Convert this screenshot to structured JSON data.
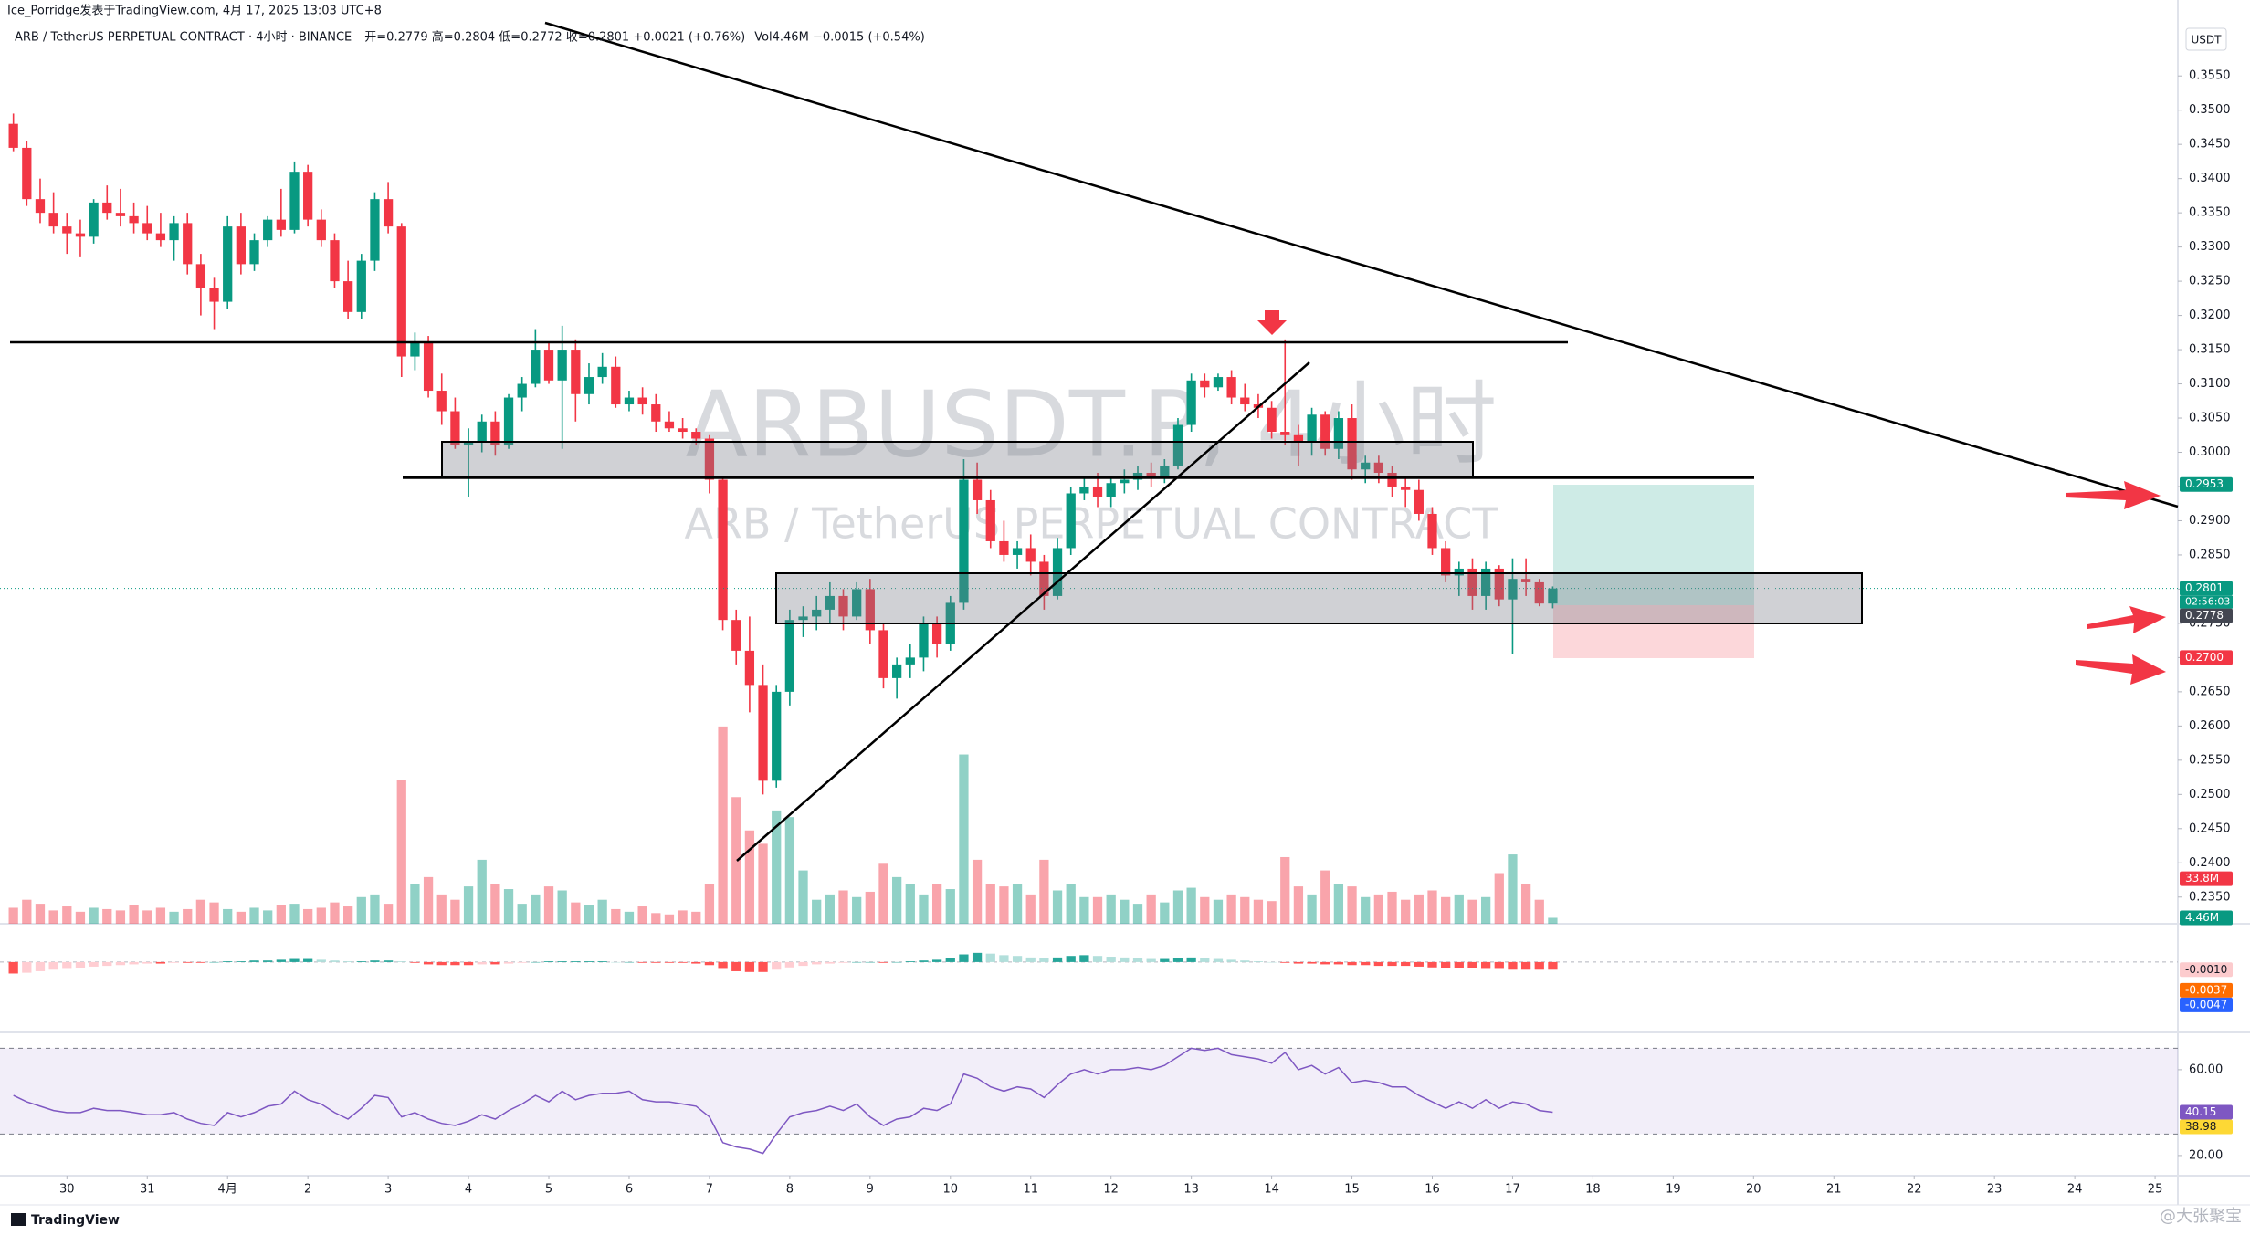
{
  "header": {
    "published": "Ice_Porridge发表于TradingView.com, 4月 17, 2025 13:03 UTC+8",
    "symbol": "ARB / TetherUS PERPETUAL CONTRACT · 4小时 · BINANCE",
    "ohlc": "开=0.2779 高=0.2804 低=0.2772 收=0.2801 +0.0021 (+0.76%)",
    "volume": "Vol4.46M −0.0015 (+0.54%)"
  },
  "watermark": {
    "symbol": "ARBUSDT.P, 4小时",
    "name": "ARB / TetherUS PERPETUAL CONTRACT"
  },
  "currency": "USDT",
  "footer": "TradingView",
  "signature": "@大张聚宝",
  "chart_data": {
    "type": "candlestick",
    "up_color": "#089981",
    "down_color": "#f23645",
    "xlim": [
      -1,
      161.7
    ],
    "ylim": [
      0.2311,
      0.3661
    ],
    "xticks": [
      {
        "value": 4,
        "label": "30"
      },
      {
        "value": 10,
        "label": "31"
      },
      {
        "value": 16,
        "label": "4月"
      },
      {
        "value": 22,
        "label": "2"
      },
      {
        "value": 28,
        "label": "3"
      },
      {
        "value": 34,
        "label": "4"
      },
      {
        "value": 40,
        "label": "5"
      },
      {
        "value": 46,
        "label": "6"
      },
      {
        "value": 52,
        "label": "7"
      },
      {
        "value": 58,
        "label": "8"
      },
      {
        "value": 64,
        "label": "9"
      },
      {
        "value": 70,
        "label": "10"
      },
      {
        "value": 76,
        "label": "11"
      },
      {
        "value": 82,
        "label": "12"
      },
      {
        "value": 88,
        "label": "13"
      },
      {
        "value": 94,
        "label": "14"
      },
      {
        "value": 100,
        "label": "15"
      },
      {
        "value": 106,
        "label": "16"
      },
      {
        "value": 112,
        "label": "17"
      },
      {
        "value": 118,
        "label": "18"
      },
      {
        "value": 124,
        "label": "19"
      },
      {
        "value": 130,
        "label": "20"
      },
      {
        "value": 136,
        "label": "21"
      },
      {
        "value": 142,
        "label": "22"
      },
      {
        "value": 148,
        "label": "23"
      },
      {
        "value": 154,
        "label": "24"
      },
      {
        "value": 160,
        "label": "25"
      }
    ],
    "yticks": [
      {
        "value": 0.235,
        "label": "0.2350"
      },
      {
        "value": 0.24,
        "label": "0.2400"
      },
      {
        "value": 0.245,
        "label": "0.2450"
      },
      {
        "value": 0.25,
        "label": "0.2500"
      },
      {
        "value": 0.255,
        "label": "0.2550"
      },
      {
        "value": 0.26,
        "label": "0.2600"
      },
      {
        "value": 0.265,
        "label": "0.2650"
      },
      {
        "value": 0.27,
        "label": "0.2700"
      },
      {
        "value": 0.275,
        "label": "0.2750"
      },
      {
        "value": 0.28,
        "label": "0.2800"
      },
      {
        "value": 0.285,
        "label": "0.2850"
      },
      {
        "value": 0.29,
        "label": "0.2900"
      },
      {
        "value": 0.295,
        "label": "0.2950"
      },
      {
        "value": 0.3,
        "label": "0.3000"
      },
      {
        "value": 0.305,
        "label": "0.3050"
      },
      {
        "value": 0.31,
        "label": "0.3100"
      },
      {
        "value": 0.315,
        "label": "0.3150"
      },
      {
        "value": 0.32,
        "label": "0.3200"
      },
      {
        "value": 0.325,
        "label": "0.3250"
      },
      {
        "value": 0.33,
        "label": "0.3300"
      },
      {
        "value": 0.335,
        "label": "0.3350"
      },
      {
        "value": 0.34,
        "label": "0.3400"
      },
      {
        "value": 0.345,
        "label": "0.3450"
      },
      {
        "value": 0.35,
        "label": "0.3500"
      },
      {
        "value": 0.355,
        "label": "0.3550"
      }
    ],
    "ohlc": [
      [
        0.348,
        0.3495,
        0.344,
        0.3445
      ],
      [
        0.3445,
        0.3455,
        0.336,
        0.337
      ],
      [
        0.337,
        0.34,
        0.3335,
        0.335
      ],
      [
        0.335,
        0.338,
        0.332,
        0.333
      ],
      [
        0.333,
        0.335,
        0.329,
        0.332
      ],
      [
        0.332,
        0.334,
        0.3285,
        0.3315
      ],
      [
        0.3315,
        0.337,
        0.3305,
        0.3365
      ],
      [
        0.3365,
        0.339,
        0.334,
        0.335
      ],
      [
        0.335,
        0.3385,
        0.333,
        0.3345
      ],
      [
        0.3345,
        0.3365,
        0.332,
        0.3335
      ],
      [
        0.3335,
        0.336,
        0.331,
        0.332
      ],
      [
        0.332,
        0.335,
        0.33,
        0.331
      ],
      [
        0.331,
        0.3345,
        0.328,
        0.3335
      ],
      [
        0.3335,
        0.335,
        0.326,
        0.3275
      ],
      [
        0.3275,
        0.329,
        0.32,
        0.324
      ],
      [
        0.324,
        0.3255,
        0.318,
        0.322
      ],
      [
        0.322,
        0.3345,
        0.321,
        0.333
      ],
      [
        0.333,
        0.335,
        0.326,
        0.3275
      ],
      [
        0.3275,
        0.332,
        0.3265,
        0.331
      ],
      [
        0.331,
        0.3345,
        0.33,
        0.334
      ],
      [
        0.334,
        0.3385,
        0.3315,
        0.3325
      ],
      [
        0.3325,
        0.3425,
        0.332,
        0.341
      ],
      [
        0.341,
        0.342,
        0.333,
        0.334
      ],
      [
        0.334,
        0.3355,
        0.33,
        0.331
      ],
      [
        0.331,
        0.332,
        0.324,
        0.325
      ],
      [
        0.325,
        0.328,
        0.3195,
        0.3205
      ],
      [
        0.3205,
        0.329,
        0.3195,
        0.328
      ],
      [
        0.328,
        0.338,
        0.3265,
        0.337
      ],
      [
        0.337,
        0.3395,
        0.332,
        0.333
      ],
      [
        0.333,
        0.3335,
        0.311,
        0.314
      ],
      [
        0.314,
        0.3175,
        0.312,
        0.316
      ],
      [
        0.316,
        0.317,
        0.308,
        0.309
      ],
      [
        0.309,
        0.3115,
        0.304,
        0.306
      ],
      [
        0.306,
        0.308,
        0.3005,
        0.301
      ],
      [
        0.301,
        0.3035,
        0.2935,
        0.3015
      ],
      [
        0.3015,
        0.3055,
        0.3,
        0.3045
      ],
      [
        0.3045,
        0.306,
        0.2995,
        0.301
      ],
      [
        0.301,
        0.3085,
        0.3005,
        0.308
      ],
      [
        0.308,
        0.311,
        0.306,
        0.31
      ],
      [
        0.31,
        0.318,
        0.3095,
        0.315
      ],
      [
        0.315,
        0.316,
        0.31,
        0.3105
      ],
      [
        0.3105,
        0.3185,
        0.3005,
        0.315
      ],
      [
        0.315,
        0.3165,
        0.3045,
        0.3085
      ],
      [
        0.3085,
        0.313,
        0.307,
        0.311
      ],
      [
        0.311,
        0.3145,
        0.31,
        0.3125
      ],
      [
        0.3125,
        0.314,
        0.3065,
        0.307
      ],
      [
        0.307,
        0.309,
        0.306,
        0.308
      ],
      [
        0.308,
        0.3095,
        0.3055,
        0.307
      ],
      [
        0.307,
        0.3085,
        0.303,
        0.3045
      ],
      [
        0.3045,
        0.306,
        0.303,
        0.3035
      ],
      [
        0.3035,
        0.305,
        0.302,
        0.303
      ],
      [
        0.303,
        0.3035,
        0.301,
        0.302
      ],
      [
        0.302,
        0.3025,
        0.294,
        0.296
      ],
      [
        0.296,
        0.2965,
        0.274,
        0.2755
      ],
      [
        0.2755,
        0.277,
        0.269,
        0.271
      ],
      [
        0.271,
        0.276,
        0.262,
        0.266
      ],
      [
        0.266,
        0.269,
        0.25,
        0.252
      ],
      [
        0.252,
        0.266,
        0.251,
        0.265
      ],
      [
        0.265,
        0.277,
        0.263,
        0.2755
      ],
      [
        0.2755,
        0.2775,
        0.273,
        0.276
      ],
      [
        0.276,
        0.279,
        0.274,
        0.277
      ],
      [
        0.277,
        0.281,
        0.275,
        0.279
      ],
      [
        0.279,
        0.28,
        0.274,
        0.276
      ],
      [
        0.276,
        0.281,
        0.2755,
        0.28
      ],
      [
        0.28,
        0.2815,
        0.272,
        0.274
      ],
      [
        0.274,
        0.275,
        0.2655,
        0.267
      ],
      [
        0.267,
        0.27,
        0.264,
        0.269
      ],
      [
        0.269,
        0.272,
        0.267,
        0.27
      ],
      [
        0.27,
        0.276,
        0.268,
        0.275
      ],
      [
        0.275,
        0.276,
        0.27,
        0.272
      ],
      [
        0.272,
        0.279,
        0.271,
        0.278
      ],
      [
        0.278,
        0.299,
        0.277,
        0.296
      ],
      [
        0.296,
        0.2985,
        0.291,
        0.293
      ],
      [
        0.293,
        0.2945,
        0.286,
        0.287
      ],
      [
        0.287,
        0.29,
        0.284,
        0.285
      ],
      [
        0.285,
        0.287,
        0.283,
        0.286
      ],
      [
        0.286,
        0.288,
        0.282,
        0.284
      ],
      [
        0.284,
        0.285,
        0.277,
        0.279
      ],
      [
        0.279,
        0.2875,
        0.2785,
        0.286
      ],
      [
        0.286,
        0.295,
        0.285,
        0.294
      ],
      [
        0.294,
        0.2965,
        0.293,
        0.295
      ],
      [
        0.295,
        0.297,
        0.292,
        0.2935
      ],
      [
        0.2935,
        0.2965,
        0.292,
        0.2955
      ],
      [
        0.2955,
        0.2975,
        0.294,
        0.296
      ],
      [
        0.296,
        0.298,
        0.2945,
        0.297
      ],
      [
        0.297,
        0.2985,
        0.295,
        0.2965
      ],
      [
        0.2965,
        0.299,
        0.2955,
        0.298
      ],
      [
        0.298,
        0.305,
        0.2975,
        0.304
      ],
      [
        0.304,
        0.3115,
        0.303,
        0.3105
      ],
      [
        0.3105,
        0.3115,
        0.308,
        0.3095
      ],
      [
        0.3095,
        0.3115,
        0.309,
        0.311
      ],
      [
        0.311,
        0.312,
        0.307,
        0.308
      ],
      [
        0.308,
        0.31,
        0.306,
        0.307
      ],
      [
        0.307,
        0.3085,
        0.305,
        0.3065
      ],
      [
        0.3065,
        0.3075,
        0.302,
        0.303
      ],
      [
        0.303,
        0.3165,
        0.301,
        0.3025
      ],
      [
        0.3025,
        0.304,
        0.298,
        0.3015
      ],
      [
        0.3015,
        0.3065,
        0.2995,
        0.3055
      ],
      [
        0.3055,
        0.306,
        0.2995,
        0.3005
      ],
      [
        0.3005,
        0.306,
        0.299,
        0.305
      ],
      [
        0.305,
        0.307,
        0.296,
        0.2975
      ],
      [
        0.2975,
        0.2995,
        0.2955,
        0.2985
      ],
      [
        0.2985,
        0.2995,
        0.2955,
        0.297
      ],
      [
        0.297,
        0.298,
        0.2935,
        0.295
      ],
      [
        0.295,
        0.2965,
        0.292,
        0.2945
      ],
      [
        0.2945,
        0.296,
        0.29,
        0.291
      ],
      [
        0.291,
        0.292,
        0.285,
        0.286
      ],
      [
        0.286,
        0.287,
        0.281,
        0.282
      ],
      [
        0.282,
        0.284,
        0.279,
        0.283
      ],
      [
        0.283,
        0.2845,
        0.277,
        0.279
      ],
      [
        0.279,
        0.284,
        0.277,
        0.283
      ],
      [
        0.283,
        0.2835,
        0.2775,
        0.2785
      ],
      [
        0.2785,
        0.2845,
        0.2705,
        0.2815
      ],
      [
        0.2815,
        0.2845,
        0.279,
        0.281
      ],
      [
        0.281,
        0.2815,
        0.2775,
        0.2779
      ],
      [
        0.2779,
        0.2804,
        0.2772,
        0.2801
      ]
    ],
    "volume_ylim": [
      0,
      693
    ],
    "volume": [
      12,
      18,
      15,
      10,
      13,
      9,
      12,
      11,
      10,
      14,
      10,
      12,
      9,
      11,
      18,
      16,
      11,
      9,
      12,
      10,
      14,
      15,
      11,
      12,
      16,
      13,
      20,
      22,
      15,
      108,
      30,
      35,
      22,
      18,
      28,
      48,
      30,
      26,
      15,
      22,
      28,
      25,
      16,
      14,
      18,
      11,
      9,
      13,
      8,
      7,
      10,
      9,
      30,
      148,
      95,
      70,
      60,
      85,
      80,
      40,
      18,
      22,
      25,
      20,
      24,
      45,
      35,
      30,
      22,
      30,
      26,
      127,
      48,
      30,
      28,
      30,
      22,
      48,
      25,
      30,
      20,
      20,
      22,
      18,
      15,
      22,
      16,
      25,
      27,
      20,
      18,
      22,
      20,
      18,
      17,
      50,
      28,
      22,
      40,
      30,
      28,
      20,
      22,
      24,
      18,
      22,
      25,
      20,
      22,
      18,
      20,
      38,
      52,
      30,
      18,
      4.46
    ],
    "macd_ylim": [
      -0.0092,
      0.005
    ],
    "macd_hist": [
      -0.0015,
      -0.0014,
      -0.0012,
      -0.001,
      -0.0009,
      -0.0008,
      -0.0006,
      -0.0005,
      -0.0004,
      -0.0003,
      -0.0002,
      -0.0002,
      -0.0001,
      -0.0001,
      -0.0001,
      0,
      0.0001,
      0.0001,
      0.0002,
      0.0002,
      0.0003,
      0.0004,
      0.0004,
      0.0003,
      0.0002,
      0.0001,
      0.0001,
      0.0002,
      0.0002,
      0.0001,
      -0.0001,
      -0.0003,
      -0.0004,
      -0.0004,
      -0.0004,
      -0.0003,
      -0.0003,
      -0.0002,
      -0.0001,
      0,
      0.0001,
      0.0001,
      0.0001,
      0.0001,
      0.0001,
      0,
      0,
      -0.0001,
      -0.0001,
      -0.0001,
      -0.0001,
      -0.0002,
      -0.0004,
      -0.0009,
      -0.0012,
      -0.0013,
      -0.0013,
      -0.001,
      -0.0007,
      -0.0005,
      -0.0003,
      -0.0002,
      -0.0001,
      0,
      0,
      -0.0001,
      0,
      0.0001,
      0.0002,
      0.0003,
      0.0005,
      0.001,
      0.0012,
      0.0011,
      0.0009,
      0.0008,
      0.0006,
      0.0005,
      0.0006,
      0.0008,
      0.0009,
      0.0008,
      0.0007,
      0.0006,
      0.0005,
      0.0004,
      0.0004,
      0.0005,
      0.0006,
      0.0005,
      0.0004,
      0.0003,
      0.0002,
      0.0001,
      0,
      -0.0001,
      -0.0002,
      -0.0002,
      -0.0003,
      -0.0003,
      -0.0004,
      -0.0004,
      -0.0005,
      -0.0005,
      -0.0005,
      -0.0006,
      -0.0007,
      -0.0008,
      -0.0008,
      -0.0008,
      -0.0009,
      -0.0009,
      -0.001,
      -0.001,
      -0.001,
      -0.001
    ],
    "rsi_ylim": [
      10.6,
      77.4
    ],
    "rsi_band": [
      30,
      70
    ],
    "rsi_ticks": [
      {
        "value": 60,
        "label": "60.00"
      },
      {
        "value": 20,
        "label": "20.00"
      }
    ],
    "rsi": [
      48,
      45,
      43,
      41,
      40,
      40,
      42,
      41,
      41,
      40,
      39,
      39,
      40,
      37,
      35,
      34,
      40,
      38,
      40,
      43,
      44,
      50,
      46,
      44,
      40,
      37,
      42,
      48,
      47,
      38,
      40,
      37,
      35,
      34,
      36,
      39,
      37,
      41,
      44,
      48,
      45,
      50,
      46,
      48,
      49,
      49,
      50,
      46,
      45,
      45,
      44,
      43,
      38,
      26,
      24,
      23,
      21,
      30,
      38,
      40,
      41,
      43,
      41,
      44,
      38,
      34,
      37,
      38,
      42,
      41,
      44,
      58,
      56,
      52,
      50,
      52,
      51,
      47,
      53,
      58,
      60,
      58,
      60,
      60,
      61,
      60,
      62,
      66,
      70,
      69,
      70,
      67,
      66,
      65,
      63,
      68,
      60,
      62,
      58,
      61,
      54,
      55,
      54,
      52,
      52,
      48,
      45,
      42,
      45,
      42,
      46,
      42,
      45,
      44,
      41,
      40.15
    ],
    "price_tags": [
      {
        "value": 0.2953,
        "label": "0.2953",
        "color": "#089981"
      },
      {
        "value": 0.2801,
        "label": "0.2801",
        "color": "#089981"
      },
      {
        "value": 0.2778,
        "label": "0.2778",
        "color": "#434651"
      },
      {
        "value": 0.27,
        "label": "0.2700",
        "color": "#f23645"
      }
    ],
    "countdown": "02:56:03",
    "volume_tags": [
      {
        "value": 33.8,
        "label": "33.8M",
        "color": "#f23645"
      },
      {
        "value": 4.46,
        "label": "4.46M",
        "color": "#089981"
      }
    ],
    "macd_tags": [
      {
        "value": -0.001,
        "label": "-0.0010",
        "color": "#fccbcd"
      },
      {
        "value": -0.0037,
        "label": "-0.0037",
        "color": "#ff6d00"
      },
      {
        "value": -0.0047,
        "label": "-0.0047",
        "color": "#2962ff"
      }
    ],
    "rsi_tags": [
      {
        "value": 40.15,
        "label": "40.15",
        "color": "#7e57c2"
      },
      {
        "value": 38.98,
        "label": "38.98",
        "color": "#fdd835"
      }
    ]
  }
}
